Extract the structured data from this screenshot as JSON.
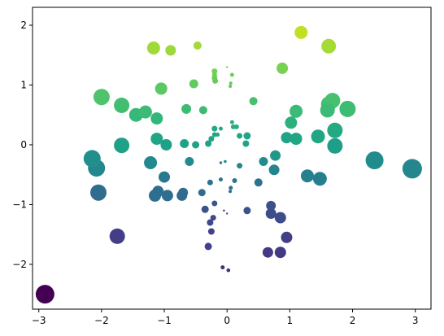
{
  "chart_data": {
    "type": "scatter",
    "title": "",
    "xlabel": "",
    "ylabel": "",
    "xlim": [
      -3.1,
      3.25
    ],
    "ylim": [
      -2.75,
      2.3
    ],
    "grid": false,
    "x_ticks": [
      -3,
      -2,
      -1,
      0,
      1,
      2,
      3
    ],
    "x_tick_labels": [
      "−3",
      "−2",
      "−1",
      "0",
      "1",
      "2",
      "3"
    ],
    "y_ticks": [
      -2,
      -1,
      0,
      1,
      2
    ],
    "y_tick_labels": [
      "−2",
      "−1",
      "0",
      "1",
      "2"
    ],
    "colormap": "viridis",
    "color_encodes": "y",
    "size_encodes": "distance from origin",
    "points": [
      {
        "x": -2.9,
        "y": -2.5,
        "size": 11.5,
        "color": "#440154"
      },
      {
        "x": -1.75,
        "y": -1.53,
        "size": 9.5,
        "color": "#433e85"
      },
      {
        "x": 0.85,
        "y": -1.8,
        "size": 7,
        "color": "#443983"
      },
      {
        "x": 0.65,
        "y": -1.8,
        "size": 6.5,
        "color": "#443983"
      },
      {
        "x": 0.95,
        "y": -1.55,
        "size": 7,
        "color": "#423f85"
      },
      {
        "x": -0.3,
        "y": -1.7,
        "size": 4.5,
        "color": "#42408b"
      },
      {
        "x": -0.07,
        "y": -2.05,
        "size": 2.5,
        "color": "#46307e"
      },
      {
        "x": 0.02,
        "y": -2.1,
        "size": 2.3,
        "color": "#46307e"
      },
      {
        "x": 0.85,
        "y": -1.22,
        "size": 7,
        "color": "#3e4d8a"
      },
      {
        "x": 0.7,
        "y": -1.15,
        "size": 6.5,
        "color": "#3e4d8a"
      },
      {
        "x": 0.7,
        "y": -1.02,
        "size": 6,
        "color": "#3d508b"
      },
      {
        "x": -0.25,
        "y": -1.45,
        "size": 4,
        "color": "#404588"
      },
      {
        "x": -0.27,
        "y": -1.3,
        "size": 4,
        "color": "#3f4889"
      },
      {
        "x": -0.22,
        "y": -1.22,
        "size": 3.5,
        "color": "#3f4889"
      },
      {
        "x": -0.35,
        "y": -1.08,
        "size": 4.5,
        "color": "#3b528b"
      },
      {
        "x": 0.32,
        "y": -1.1,
        "size": 4.5,
        "color": "#3b528b"
      },
      {
        "x": -0.05,
        "y": -1.1,
        "size": 1.3,
        "color": "#3b528b"
      },
      {
        "x": 0.0,
        "y": -1.15,
        "size": 1.2,
        "color": "#3b528b"
      },
      {
        "x": -0.2,
        "y": -0.98,
        "size": 3.5,
        "color": "#39568c"
      },
      {
        "x": -2.05,
        "y": -0.8,
        "size": 10,
        "color": "#2f6c8e"
      },
      {
        "x": -1.15,
        "y": -0.85,
        "size": 7.5,
        "color": "#2e6e8e"
      },
      {
        "x": -1.1,
        "y": -0.78,
        "size": 7,
        "color": "#2e6e8e"
      },
      {
        "x": -0.95,
        "y": -0.85,
        "size": 7,
        "color": "#2e6e8e"
      },
      {
        "x": -0.72,
        "y": -0.85,
        "size": 6.5,
        "color": "#306a8e"
      },
      {
        "x": -0.7,
        "y": -0.8,
        "size": 6,
        "color": "#2f6c8e"
      },
      {
        "x": -0.4,
        "y": -0.8,
        "size": 4.5,
        "color": "#2f6b8e"
      },
      {
        "x": -0.27,
        "y": -0.63,
        "size": 3.5,
        "color": "#2c728e"
      },
      {
        "x": -0.1,
        "y": -0.58,
        "size": 2.5,
        "color": "#2a768e"
      },
      {
        "x": 0.06,
        "y": -0.72,
        "size": 2.5,
        "color": "#2d708e"
      },
      {
        "x": 0.05,
        "y": -0.78,
        "size": 2,
        "color": "#2e6e8e"
      },
      {
        "x": 0.12,
        "y": -0.6,
        "size": 3,
        "color": "#2b748e"
      },
      {
        "x": 0.5,
        "y": -0.63,
        "size": 5,
        "color": "#2c728e"
      },
      {
        "x": -1.0,
        "y": -0.54,
        "size": 7,
        "color": "#29798e"
      },
      {
        "x": -2.08,
        "y": -0.39,
        "size": 10.5,
        "color": "#23888e"
      },
      {
        "x": -2.15,
        "y": -0.23,
        "size": 10.5,
        "color": "#21908d"
      },
      {
        "x": -1.22,
        "y": -0.3,
        "size": 8,
        "color": "#22898e"
      },
      {
        "x": -0.6,
        "y": -0.28,
        "size": 5.5,
        "color": "#228b8d"
      },
      {
        "x": 0.2,
        "y": -0.35,
        "size": 3.5,
        "color": "#22888e"
      },
      {
        "x": 0.58,
        "y": -0.28,
        "size": 5.5,
        "color": "#228b8d"
      },
      {
        "x": 0.75,
        "y": -0.42,
        "size": 6.5,
        "color": "#25848e"
      },
      {
        "x": 0.77,
        "y": -0.18,
        "size": 6.5,
        "color": "#1f978b"
      },
      {
        "x": 1.28,
        "y": -0.52,
        "size": 8,
        "color": "#26818e"
      },
      {
        "x": 1.48,
        "y": -0.57,
        "size": 8.5,
        "color": "#277f8e"
      },
      {
        "x": 2.35,
        "y": -0.26,
        "size": 11,
        "color": "#228c8d"
      },
      {
        "x": 2.95,
        "y": -0.4,
        "size": 12,
        "color": "#24878e"
      },
      {
        "x": -0.1,
        "y": -0.3,
        "size": 1.8,
        "color": "#22898e"
      },
      {
        "x": -1.68,
        "y": -0.01,
        "size": 9.5,
        "color": "#1fa187"
      },
      {
        "x": -1.12,
        "y": 0.1,
        "size": 7.5,
        "color": "#21a685"
      },
      {
        "x": -0.97,
        "y": 0.0,
        "size": 7,
        "color": "#1fa187"
      },
      {
        "x": -0.68,
        "y": 0.02,
        "size": 5.5,
        "color": "#1fa287"
      },
      {
        "x": -0.5,
        "y": 0.0,
        "size": 4.5,
        "color": "#1fa187"
      },
      {
        "x": -0.3,
        "y": 0.02,
        "size": 4,
        "color": "#1fa287"
      },
      {
        "x": -0.25,
        "y": 0.1,
        "size": 3.5,
        "color": "#20a386"
      },
      {
        "x": -0.2,
        "y": 0.27,
        "size": 3.5,
        "color": "#24aa83"
      },
      {
        "x": -0.2,
        "y": 0.17,
        "size": 3,
        "color": "#21a685"
      },
      {
        "x": -0.15,
        "y": 0.17,
        "size": 2.5,
        "color": "#21a685"
      },
      {
        "x": -0.1,
        "y": 0.27,
        "size": 2.5,
        "color": "#24aa83"
      },
      {
        "x": 0.08,
        "y": 0.38,
        "size": 2.5,
        "color": "#2ab07f"
      },
      {
        "x": 0.1,
        "y": 0.3,
        "size": 3,
        "color": "#26ad81"
      },
      {
        "x": 0.15,
        "y": 0.3,
        "size": 3,
        "color": "#26ad81"
      },
      {
        "x": 0.2,
        "y": 0.15,
        "size": 3.5,
        "color": "#21a685"
      },
      {
        "x": 0.32,
        "y": 0.15,
        "size": 4.5,
        "color": "#21a685"
      },
      {
        "x": 0.3,
        "y": 0.02,
        "size": 4,
        "color": "#1fa287"
      },
      {
        "x": 0.95,
        "y": 0.12,
        "size": 7,
        "color": "#20a486"
      },
      {
        "x": 1.1,
        "y": 0.1,
        "size": 7.5,
        "color": "#21a685"
      },
      {
        "x": 1.45,
        "y": 0.14,
        "size": 8.5,
        "color": "#21a685"
      },
      {
        "x": 1.72,
        "y": -0.02,
        "size": 9.5,
        "color": "#1f9f88"
      },
      {
        "x": 1.72,
        "y": 0.24,
        "size": 9.5,
        "color": "#24aa83"
      },
      {
        "x": -0.03,
        "y": -0.28,
        "size": 1.8,
        "color": "#228b8d"
      },
      {
        "x": 1.02,
        "y": 0.37,
        "size": 7.5,
        "color": "#2cb17e"
      },
      {
        "x": 1.1,
        "y": 0.56,
        "size": 8,
        "color": "#3bbb75"
      },
      {
        "x": -1.12,
        "y": 0.44,
        "size": 7.5,
        "color": "#32b67a"
      },
      {
        "x": -1.3,
        "y": 0.55,
        "size": 8,
        "color": "#3bbb75"
      },
      {
        "x": -1.45,
        "y": 0.5,
        "size": 8.5,
        "color": "#37b878"
      },
      {
        "x": -1.68,
        "y": 0.66,
        "size": 9.5,
        "color": "#42be71"
      },
      {
        "x": -2.0,
        "y": 0.8,
        "size": 10,
        "color": "#4ec36b"
      },
      {
        "x": -0.65,
        "y": 0.6,
        "size": 6,
        "color": "#3dbc74"
      },
      {
        "x": -0.38,
        "y": 0.58,
        "size": 5,
        "color": "#3bbb75"
      },
      {
        "x": -1.05,
        "y": 0.94,
        "size": 7.5,
        "color": "#5ac864"
      },
      {
        "x": -0.53,
        "y": 1.02,
        "size": 5.5,
        "color": "#62cb5f"
      },
      {
        "x": 0.42,
        "y": 0.73,
        "size": 5,
        "color": "#46c06f"
      },
      {
        "x": 1.6,
        "y": 0.58,
        "size": 9,
        "color": "#3bbb75"
      },
      {
        "x": 1.62,
        "y": 0.68,
        "size": 9.5,
        "color": "#44bf70"
      },
      {
        "x": 1.68,
        "y": 0.74,
        "size": 9.5,
        "color": "#48c16e"
      },
      {
        "x": 1.92,
        "y": 0.6,
        "size": 10,
        "color": "#3dbc74"
      },
      {
        "x": 0.05,
        "y": 0.98,
        "size": 2,
        "color": "#5ec962"
      },
      {
        "x": 0.06,
        "y": 1.03,
        "size": 2,
        "color": "#62cb5f"
      },
      {
        "x": 0.08,
        "y": 1.17,
        "size": 2.5,
        "color": "#6ece58"
      },
      {
        "x": -0.2,
        "y": 1.17,
        "size": 3,
        "color": "#6ece58"
      },
      {
        "x": -0.2,
        "y": 1.23,
        "size": 3.5,
        "color": "#73d056"
      },
      {
        "x": -0.2,
        "y": 1.12,
        "size": 3.5,
        "color": "#6ccd5a"
      },
      {
        "x": -0.19,
        "y": 1.07,
        "size": 3.5,
        "color": "#67cc5c"
      },
      {
        "x": 0.0,
        "y": 1.3,
        "size": 1.2,
        "color": "#7ad151"
      },
      {
        "x": 0.88,
        "y": 1.28,
        "size": 7,
        "color": "#77d153"
      },
      {
        "x": -0.47,
        "y": 1.66,
        "size": 5,
        "color": "#a2da37"
      },
      {
        "x": -0.9,
        "y": 1.58,
        "size": 6.5,
        "color": "#9bd93c"
      },
      {
        "x": -1.17,
        "y": 1.62,
        "size": 8,
        "color": "#a0da39"
      },
      {
        "x": 1.18,
        "y": 1.88,
        "size": 8,
        "color": "#c2df23"
      },
      {
        "x": 1.62,
        "y": 1.65,
        "size": 9,
        "color": "#a5db36"
      }
    ]
  }
}
